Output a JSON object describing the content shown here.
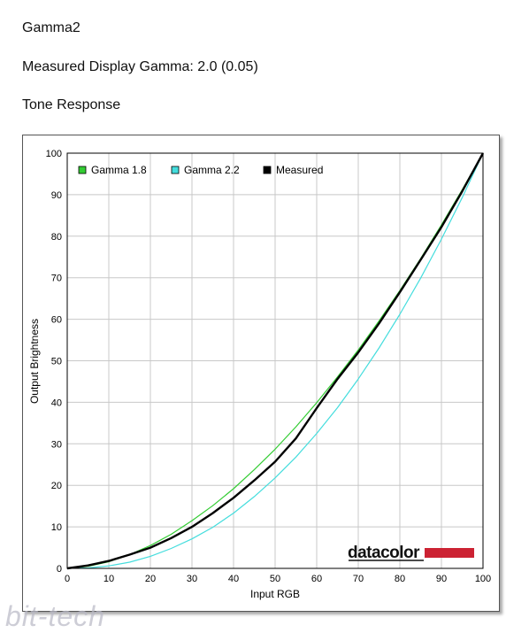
{
  "header": {
    "title": "Gamma2",
    "measured": "Measured Display Gamma: 2.0 (0.05)",
    "section": "Tone Response"
  },
  "chart_data": {
    "type": "line",
    "xlabel": "Input RGB",
    "ylabel": "Output Brightness",
    "xlim": [
      0,
      100
    ],
    "ylim": [
      0,
      100
    ],
    "xticks": [
      "0",
      "10",
      "20",
      "30",
      "40",
      "50",
      "60",
      "70",
      "80",
      "90",
      "100"
    ],
    "yticks": [
      "0",
      "10",
      "20",
      "30",
      "40",
      "50",
      "60",
      "70",
      "80",
      "90",
      "100"
    ],
    "grid": true,
    "legend": "top-left",
    "series": [
      {
        "name": "Gamma 1.8",
        "color": "#33cc33",
        "width": 1.2,
        "x": [
          0,
          5,
          10,
          15,
          20,
          25,
          30,
          35,
          40,
          45,
          50,
          55,
          60,
          65,
          70,
          75,
          80,
          85,
          90,
          95,
          100
        ],
        "y": [
          0,
          0.5,
          1.6,
          3.3,
          5.5,
          8.2,
          11.5,
          15.1,
          19.2,
          23.8,
          28.7,
          34.1,
          39.9,
          46.1,
          52.6,
          59.6,
          66.9,
          74.6,
          82.7,
          91.2,
          100
        ]
      },
      {
        "name": "Gamma 2.2",
        "color": "#44dddd",
        "width": 1.2,
        "x": [
          0,
          5,
          10,
          15,
          20,
          25,
          30,
          35,
          40,
          45,
          50,
          55,
          60,
          65,
          70,
          75,
          80,
          85,
          90,
          95,
          100
        ],
        "y": [
          0,
          0.1,
          0.6,
          1.5,
          2.9,
          4.8,
          7.1,
          9.9,
          13.3,
          17.3,
          21.8,
          26.8,
          32.5,
          38.7,
          45.6,
          53.1,
          61.2,
          69.9,
          79.3,
          89.3,
          100
        ]
      },
      {
        "name": "Measured",
        "color": "#000000",
        "width": 2.4,
        "x": [
          0,
          5,
          10,
          15,
          20,
          25,
          30,
          35,
          40,
          45,
          50,
          55,
          60,
          65,
          70,
          75,
          80,
          85,
          90,
          95,
          100
        ],
        "y": [
          0,
          0.7,
          1.8,
          3.3,
          5.0,
          7.3,
          10.0,
          13.3,
          17.0,
          21.2,
          25.7,
          31.3,
          38.6,
          45.6,
          52.0,
          59.0,
          66.5,
          74.3,
          82.2,
          90.8,
          100
        ]
      }
    ]
  },
  "brand": {
    "text": "datacolor",
    "bar_color": "#cc2233"
  },
  "watermark": "bit-tech"
}
